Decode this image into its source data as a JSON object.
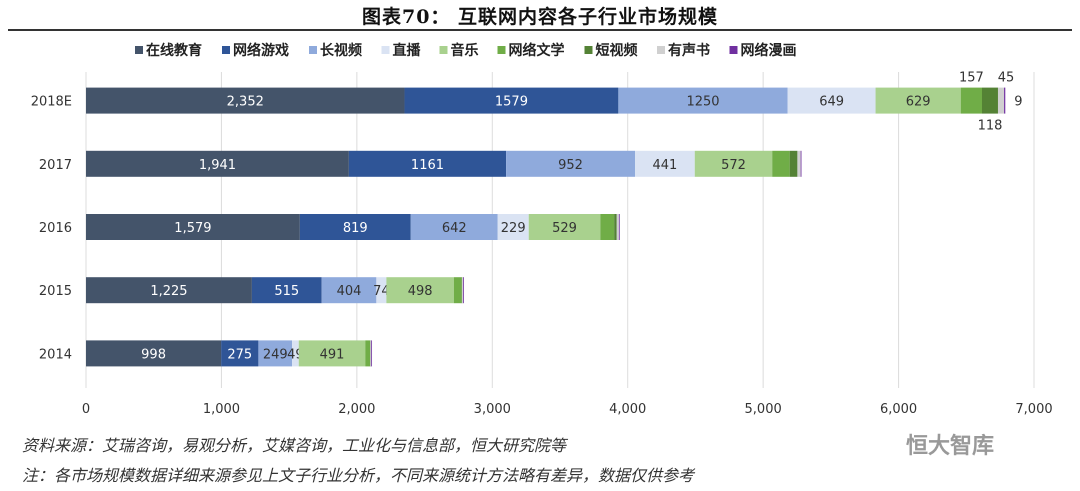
{
  "title": "图表70：        互联网内容各子行业市场规模",
  "chart_data": {
    "type": "bar",
    "orientation": "horizontal",
    "stacked": true,
    "categories": [
      "2018E",
      "2017",
      "2016",
      "2015",
      "2014"
    ],
    "xlim": [
      0,
      7000
    ],
    "xticks": [
      "0",
      "1,000",
      "2,000",
      "3,000",
      "4,000",
      "5,000",
      "6,000",
      "7,000"
    ],
    "grid": true,
    "legend_position": "top",
    "series": [
      {
        "name": "在线教育",
        "color": "#44546a",
        "values": [
          2352,
          1941,
          1579,
          1225,
          998
        ],
        "labels": [
          "2,352",
          "1,941",
          "1,579",
          "1,225",
          "998"
        ]
      },
      {
        "name": "网络游戏",
        "color": "#2f5597",
        "values": [
          1579,
          1161,
          819,
          515,
          275
        ],
        "labels": [
          "1579",
          "1161",
          "819",
          "515",
          "275"
        ]
      },
      {
        "name": "长视频",
        "color": "#8faadc",
        "values": [
          1250,
          952,
          642,
          404,
          249
        ],
        "labels": [
          "1250",
          "952",
          "642",
          "404",
          "249"
        ]
      },
      {
        "name": "直播",
        "color": "#dae3f3",
        "values": [
          649,
          441,
          229,
          74,
          49
        ],
        "labels": [
          "649",
          "441",
          "229",
          "74",
          "49"
        ]
      },
      {
        "name": "音乐",
        "color": "#a9d18e",
        "values": [
          629,
          572,
          529,
          498,
          491
        ],
        "labels": [
          "629",
          "572",
          "529",
          "498",
          "491"
        ]
      },
      {
        "name": "网络文学",
        "color": "#70ad47",
        "values": [
          157,
          129,
          102,
          57,
          35
        ],
        "labels": [
          "157",
          "",
          "",
          "",
          ""
        ]
      },
      {
        "name": "短视频",
        "color": "#548235",
        "values": [
          118,
          57,
          19,
          2,
          1
        ],
        "labels": [
          "118",
          "",
          "",
          "",
          ""
        ]
      },
      {
        "name": "有声书",
        "color": "#d0d0d0",
        "values": [
          45,
          24,
          16,
          10,
          8
        ],
        "labels": [
          "45",
          "",
          "",
          "",
          ""
        ]
      },
      {
        "name": "网络漫画",
        "color": "#7030a0",
        "values": [
          9,
          4,
          2,
          1,
          1
        ],
        "labels": [
          "9",
          "",
          "",
          "",
          ""
        ]
      }
    ]
  },
  "footer": {
    "source": "资料来源：艾瑞咨询，易观分析，艾媒咨询，工业化与信息部，恒大研究院等",
    "note": "注：各市场规模数据详细来源参见上文子行业分析，不同来源统计方法略有差异，数据仅供参考",
    "watermark": "恒大智库"
  }
}
